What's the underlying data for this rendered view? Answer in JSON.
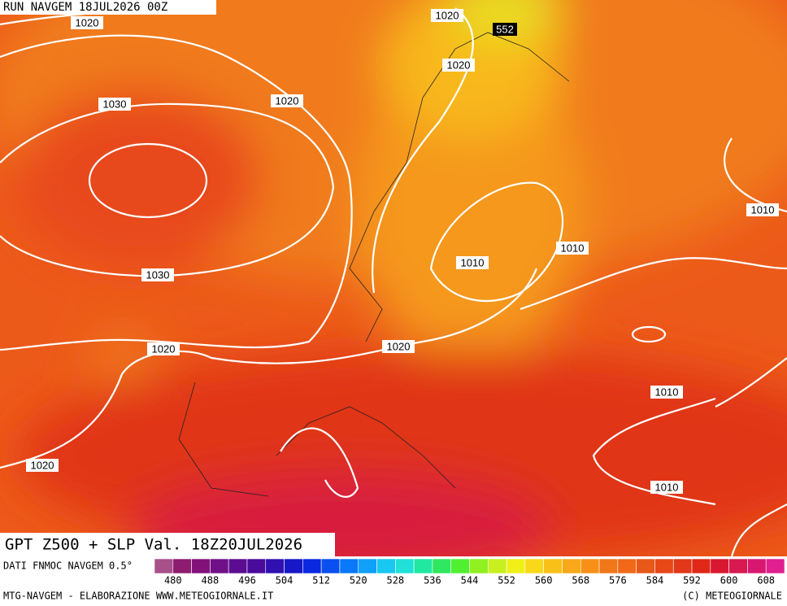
{
  "header": {
    "run": "RUN NAVGEM 18JUL2026 00Z"
  },
  "title": "GPT Z500 + SLP Val. 18Z20JUL2026",
  "isobar_labels": [
    "1020",
    "1020",
    "552",
    "1020",
    "1020",
    "1030",
    "1010",
    "1010",
    "1010",
    "1030",
    "1020",
    "1020",
    "1010",
    "1020",
    "1010"
  ],
  "colorbar": {
    "source": "DATI FNMOC NAVGEM 0.5°",
    "ticks": [
      480,
      488,
      496,
      504,
      512,
      520,
      528,
      536,
      544,
      552,
      560,
      568,
      576,
      584,
      592,
      600,
      608
    ],
    "colors": [
      "#a8508a",
      "#8e1c70",
      "#82127a",
      "#701088",
      "#5c0c92",
      "#4a0a9c",
      "#3010b0",
      "#1818c8",
      "#0a28e0",
      "#0a50f0",
      "#0a78f8",
      "#10a0f8",
      "#18c8f0",
      "#20e0d8",
      "#20e8a0",
      "#30e860",
      "#50f030",
      "#90f020",
      "#c8f020",
      "#f0f018",
      "#f8d818",
      "#f8c018",
      "#f8a818",
      "#f89018",
      "#f07818",
      "#f06818",
      "#e85818",
      "#e84818",
      "#e03818",
      "#e02818",
      "#d81830",
      "#d81850",
      "#d81870",
      "#e02090"
    ]
  },
  "footer": {
    "left": "MTG-NAVGEM - ELABORAZIONE WWW.METEOGIORNALE.IT",
    "right": "(C) METEOGIORNALE"
  }
}
